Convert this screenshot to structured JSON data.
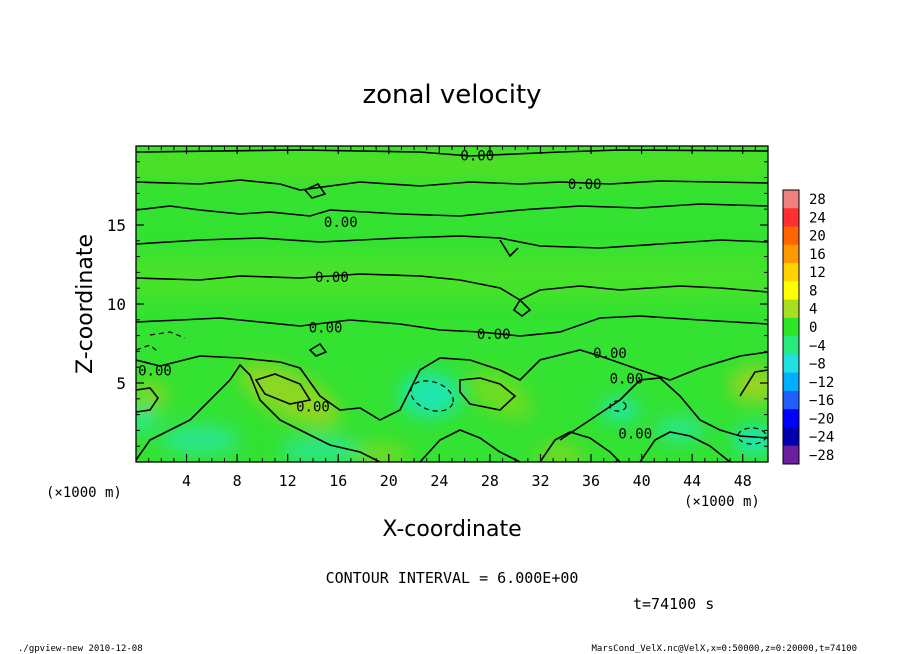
{
  "chart_data": {
    "type": "heatmap",
    "title": "zonal velocity",
    "xlabel": "X-coordinate",
    "ylabel": "Z-coordinate",
    "x_unit": "(×1000 m)",
    "y_unit": "(×1000 m)",
    "xlim": [
      0,
      50
    ],
    "ylim": [
      0,
      20
    ],
    "x_ticks": [
      4,
      8,
      12,
      16,
      20,
      24,
      28,
      32,
      36,
      40,
      44,
      48
    ],
    "y_ticks": [
      5,
      10,
      15
    ],
    "colorbar": {
      "levels": [
        28,
        24,
        20,
        16,
        12,
        8,
        4,
        0,
        -4,
        -8,
        -12,
        -16,
        -20,
        -24,
        -28
      ],
      "colors": [
        "#f08080",
        "#ff3030",
        "#ff6600",
        "#ff9900",
        "#ffd200",
        "#ffff00",
        "#a8e020",
        "#2ee628",
        "#28e880",
        "#20e0e0",
        "#00b0ff",
        "#2060ff",
        "#0000ff",
        "#0000b0",
        "#6a1fa0"
      ]
    },
    "contour_labels": [
      {
        "text": "0.00",
        "x": 27.0,
        "z": 19.4
      },
      {
        "text": "0.00",
        "x": 35.5,
        "z": 17.6
      },
      {
        "text": "0.00",
        "x": 16.2,
        "z": 15.2
      },
      {
        "text": "0.00",
        "x": 15.5,
        "z": 11.7
      },
      {
        "text": "0.00",
        "x": 15.0,
        "z": 8.5
      },
      {
        "text": "0.00",
        "x": 28.3,
        "z": 8.1
      },
      {
        "text": "0.00",
        "x": 37.5,
        "z": 6.9
      },
      {
        "text": "0.00",
        "x": 38.8,
        "z": 5.3
      },
      {
        "text": "0.00",
        "x": 1.5,
        "z": 5.8
      },
      {
        "text": "0.00",
        "x": 14.0,
        "z": 3.5
      },
      {
        "text": "0.00",
        "x": 39.5,
        "z": 1.8
      }
    ],
    "contour_interval": "CONTOUR INTERVAL = 6.000E+00",
    "time": "t=74100 s"
  },
  "footer": {
    "left": "./gpview-new  2010-12-08",
    "right": "MarsCond_VelX.nc@VelX,x=0:50000,z=0:20000,t=74100"
  }
}
